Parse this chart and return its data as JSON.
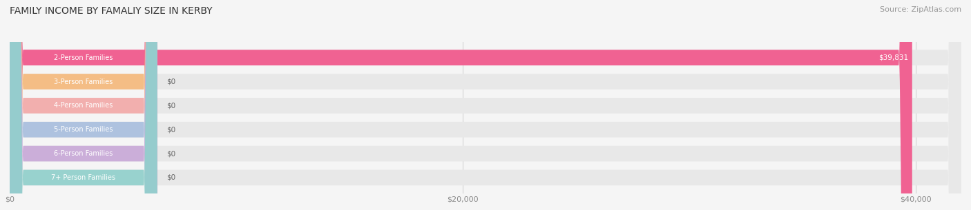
{
  "title": "FAMILY INCOME BY FAMALIY SIZE IN KERBY",
  "source": "Source: ZipAtlas.com",
  "categories": [
    "2-Person Families",
    "3-Person Families",
    "4-Person Families",
    "5-Person Families",
    "6-Person Families",
    "7+ Person Families"
  ],
  "values": [
    39831,
    0,
    0,
    0,
    0,
    0
  ],
  "bar_colors": [
    "#f06292",
    "#f6b97a",
    "#f4a9a8",
    "#a8bede",
    "#c8a8d8",
    "#90d0cc"
  ],
  "value_labels": [
    "$39,831",
    "$0",
    "$0",
    "$0",
    "$0",
    "$0"
  ],
  "xlim": [
    0,
    42000
  ],
  "xticks": [
    0,
    20000,
    40000
  ],
  "xticklabels": [
    "$0",
    "$20,000",
    "$40,000"
  ],
  "background_color": "#f5f5f5",
  "bar_background": "#e8e8e8",
  "title_fontsize": 10,
  "source_fontsize": 8
}
